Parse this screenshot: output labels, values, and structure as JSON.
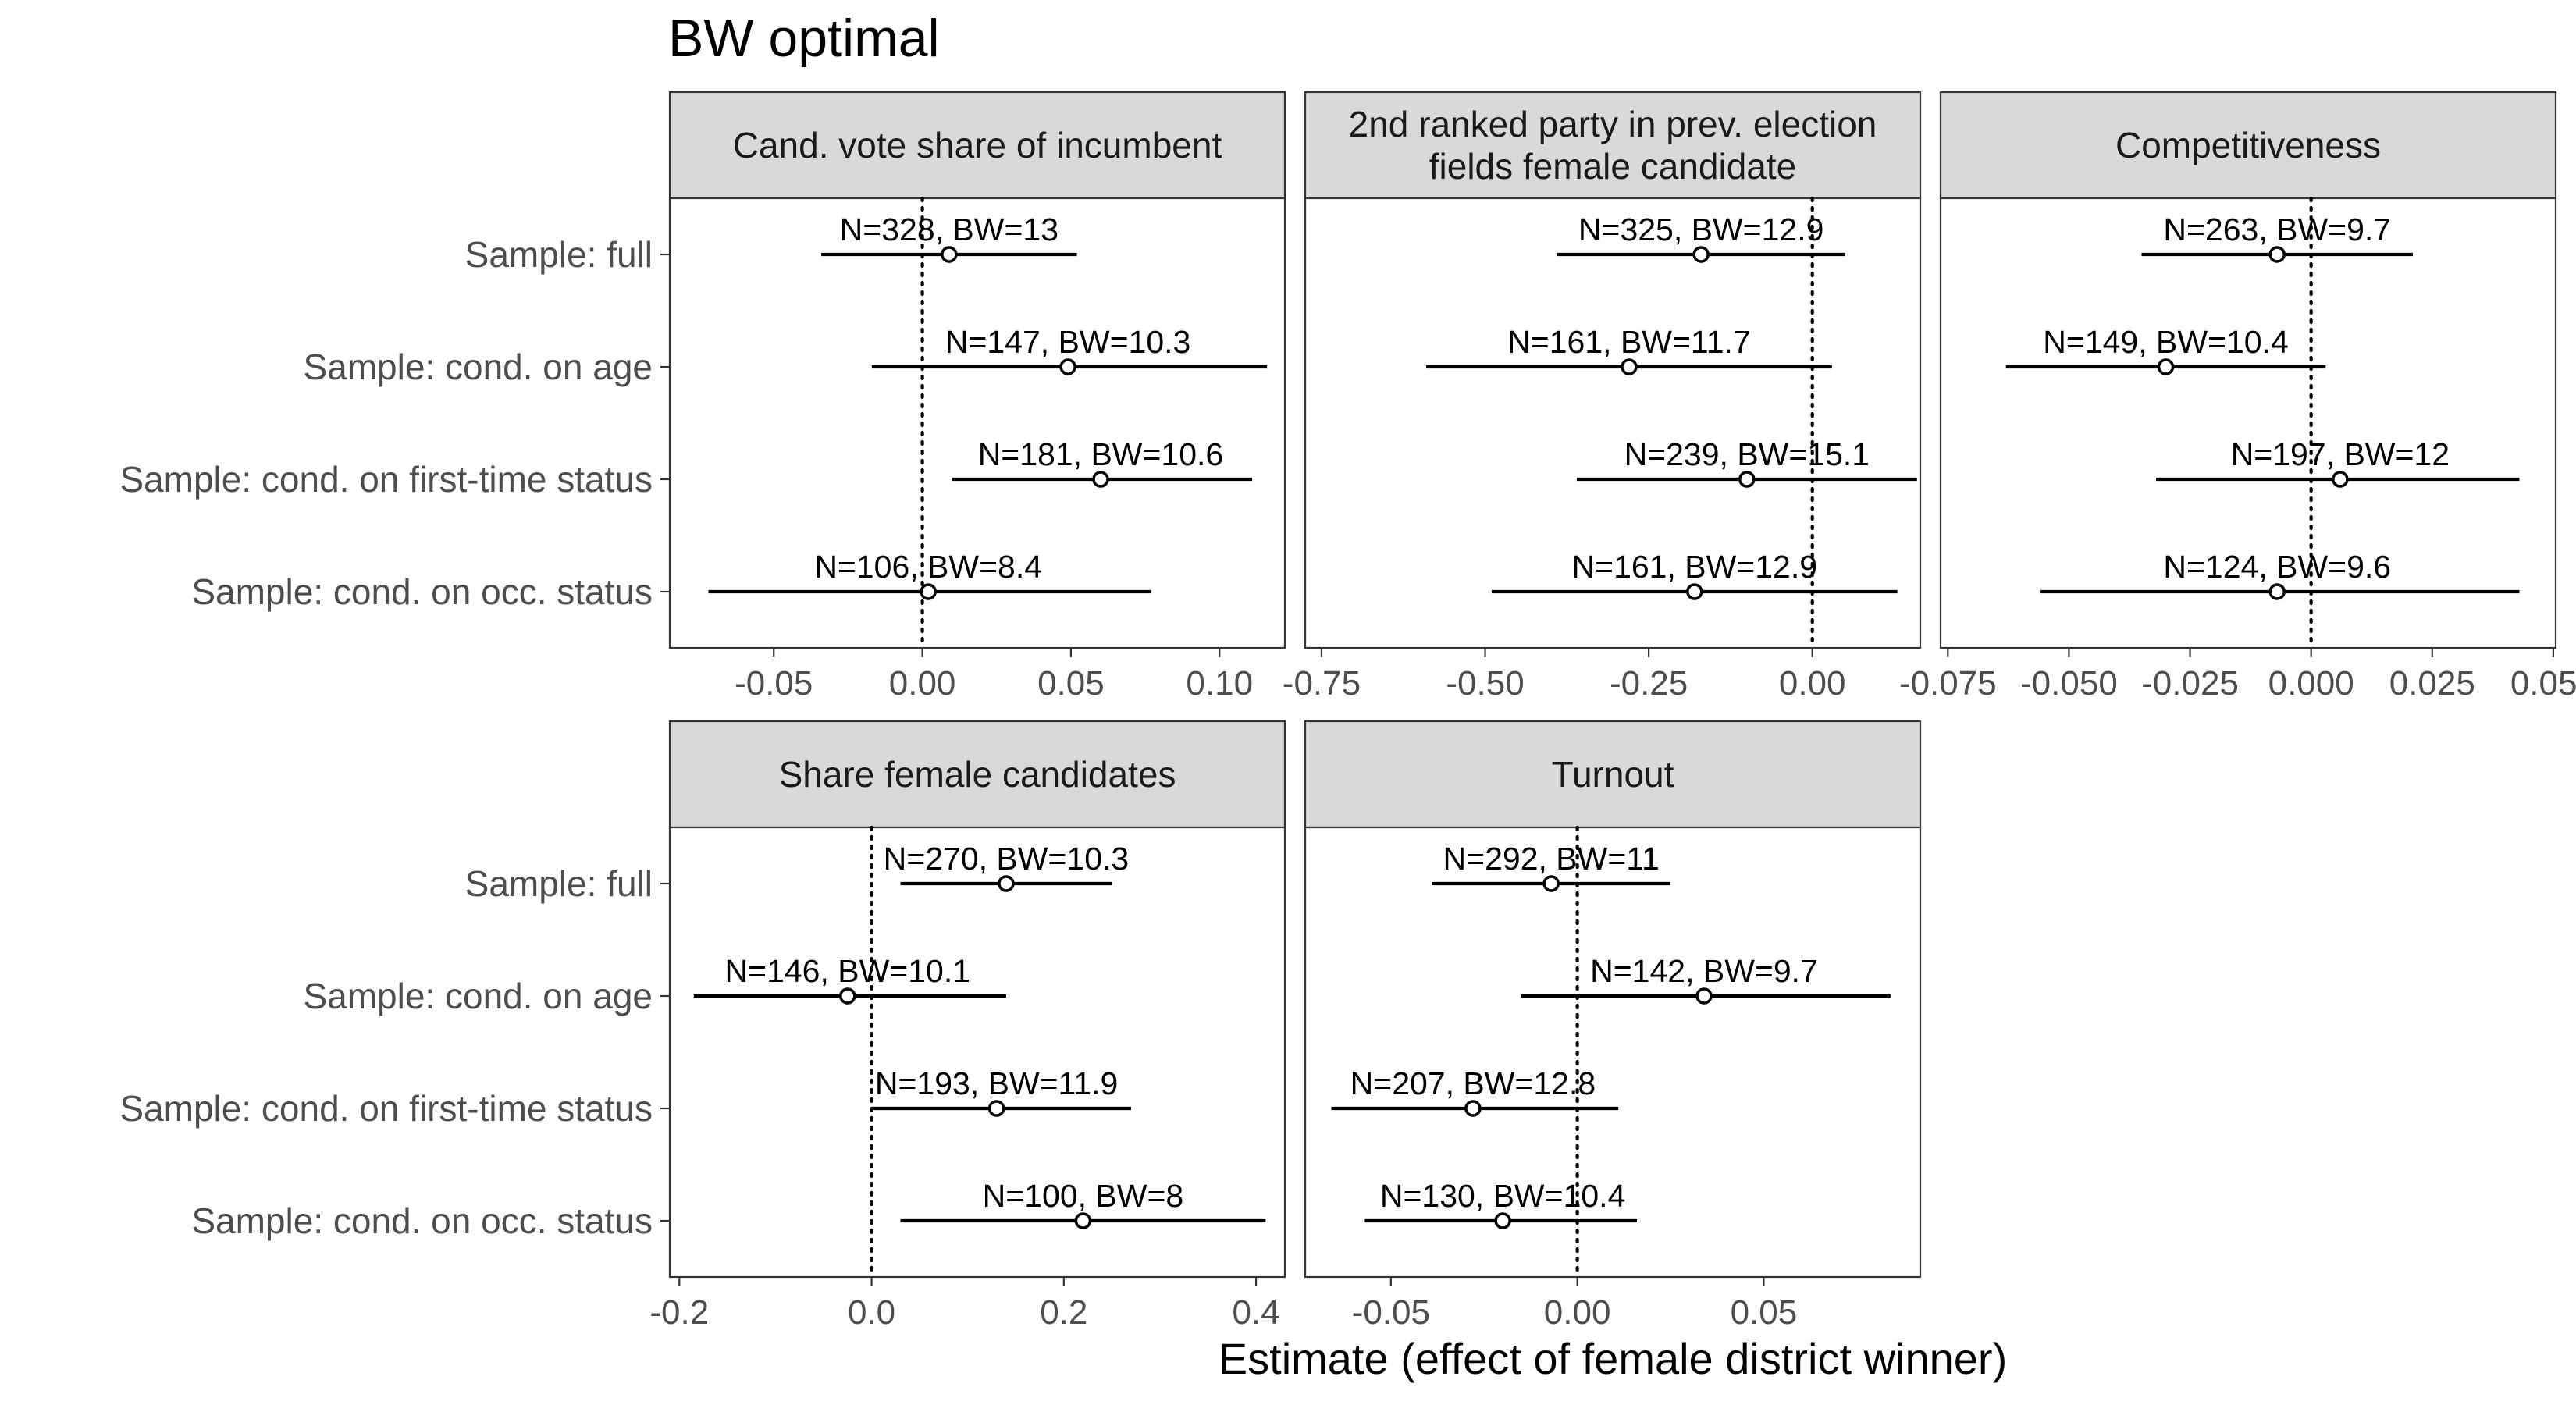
{
  "chart_data": {
    "type": "forest",
    "title": "BW optimal",
    "xlabel": "Estimate (effect of female district winner)",
    "grid": false,
    "rows": [
      "Sample: full",
      "Sample: cond. on age",
      "Sample: cond. on first-time status",
      "Sample: cond. on occ. status"
    ],
    "panels": [
      {
        "strip": [
          "Cand. vote share of incumbent"
        ],
        "xlim": [
          -0.085,
          0.122
        ],
        "ticks": [
          -0.05,
          0.0,
          0.05,
          0.1
        ],
        "tick_labels": [
          "-0.05",
          "0.00",
          "0.05",
          "0.10"
        ],
        "points": [
          {
            "estimate": 0.009,
            "lower": -0.034,
            "upper": 0.052,
            "label": "N=328, BW=13"
          },
          {
            "estimate": 0.049,
            "lower": -0.017,
            "upper": 0.116,
            "label": "N=147, BW=10.3"
          },
          {
            "estimate": 0.06,
            "lower": 0.01,
            "upper": 0.111,
            "label": "N=181, BW=10.6"
          },
          {
            "estimate": 0.002,
            "lower": -0.072,
            "upper": 0.077,
            "label": "N=106, BW=8.4"
          }
        ]
      },
      {
        "strip": [
          "2nd ranked party in prev. election",
          "fields female candidate"
        ],
        "xlim": [
          -0.775,
          0.165
        ],
        "ticks": [
          -0.75,
          -0.5,
          -0.25,
          0.0
        ],
        "tick_labels": [
          "-0.75",
          "-0.50",
          "-0.25",
          "0.00"
        ],
        "points": [
          {
            "estimate": -0.17,
            "lower": -0.39,
            "upper": 0.05,
            "label": "N=325, BW=12.9"
          },
          {
            "estimate": -0.28,
            "lower": -0.59,
            "upper": 0.03,
            "label": "N=161, BW=11.7"
          },
          {
            "estimate": -0.1,
            "lower": -0.36,
            "upper": 0.16,
            "label": "N=239, BW=15.1"
          },
          {
            "estimate": -0.18,
            "lower": -0.49,
            "upper": 0.13,
            "label": "N=161, BW=12.9"
          }
        ]
      },
      {
        "strip": [
          "Competitiveness"
        ],
        "xlim": [
          -0.0765,
          0.0505
        ],
        "ticks": [
          -0.075,
          -0.05,
          -0.025,
          0.0,
          0.025,
          0.05
        ],
        "tick_labels": [
          "-0.075",
          "-0.050",
          "-0.025",
          "0.000",
          "0.025",
          "0.050"
        ],
        "points": [
          {
            "estimate": -0.007,
            "lower": -0.035,
            "upper": 0.021,
            "label": "N=263, BW=9.7"
          },
          {
            "estimate": -0.03,
            "lower": -0.063,
            "upper": 0.003,
            "label": "N=149, BW=10.4"
          },
          {
            "estimate": 0.006,
            "lower": -0.032,
            "upper": 0.043,
            "label": "N=197, BW=12"
          },
          {
            "estimate": -0.007,
            "lower": -0.056,
            "upper": 0.043,
            "label": "N=124, BW=9.6"
          }
        ]
      },
      {
        "strip": [
          "Share female candidates"
        ],
        "xlim": [
          -0.21,
          0.43
        ],
        "ticks": [
          -0.2,
          0.0,
          0.2,
          0.4
        ],
        "tick_labels": [
          "-0.2",
          "0.0",
          "0.2",
          "0.4"
        ],
        "points": [
          {
            "estimate": 0.14,
            "lower": 0.03,
            "upper": 0.25,
            "label": "N=270, BW=10.3"
          },
          {
            "estimate": -0.025,
            "lower": -0.185,
            "upper": 0.14,
            "label": "N=146, BW=10.1"
          },
          {
            "estimate": 0.13,
            "lower": 0.0,
            "upper": 0.27,
            "label": "N=193, BW=11.9"
          },
          {
            "estimate": 0.22,
            "lower": 0.03,
            "upper": 0.41,
            "label": "N=100, BW=8"
          }
        ]
      },
      {
        "strip": [
          "Turnout"
        ],
        "xlim": [
          -0.073,
          0.092
        ],
        "ticks": [
          -0.05,
          0.0,
          0.05
        ],
        "tick_labels": [
          "-0.05",
          "0.00",
          "0.05"
        ],
        "points": [
          {
            "estimate": -0.007,
            "lower": -0.039,
            "upper": 0.025,
            "label": "N=292, BW=11"
          },
          {
            "estimate": 0.034,
            "lower": -0.015,
            "upper": 0.084,
            "label": "N=142, BW=9.7"
          },
          {
            "estimate": -0.028,
            "lower": -0.066,
            "upper": 0.011,
            "label": "N=207, BW=12.8"
          },
          {
            "estimate": -0.02,
            "lower": -0.057,
            "upper": 0.016,
            "label": "N=130, BW=10.4"
          }
        ]
      }
    ]
  }
}
